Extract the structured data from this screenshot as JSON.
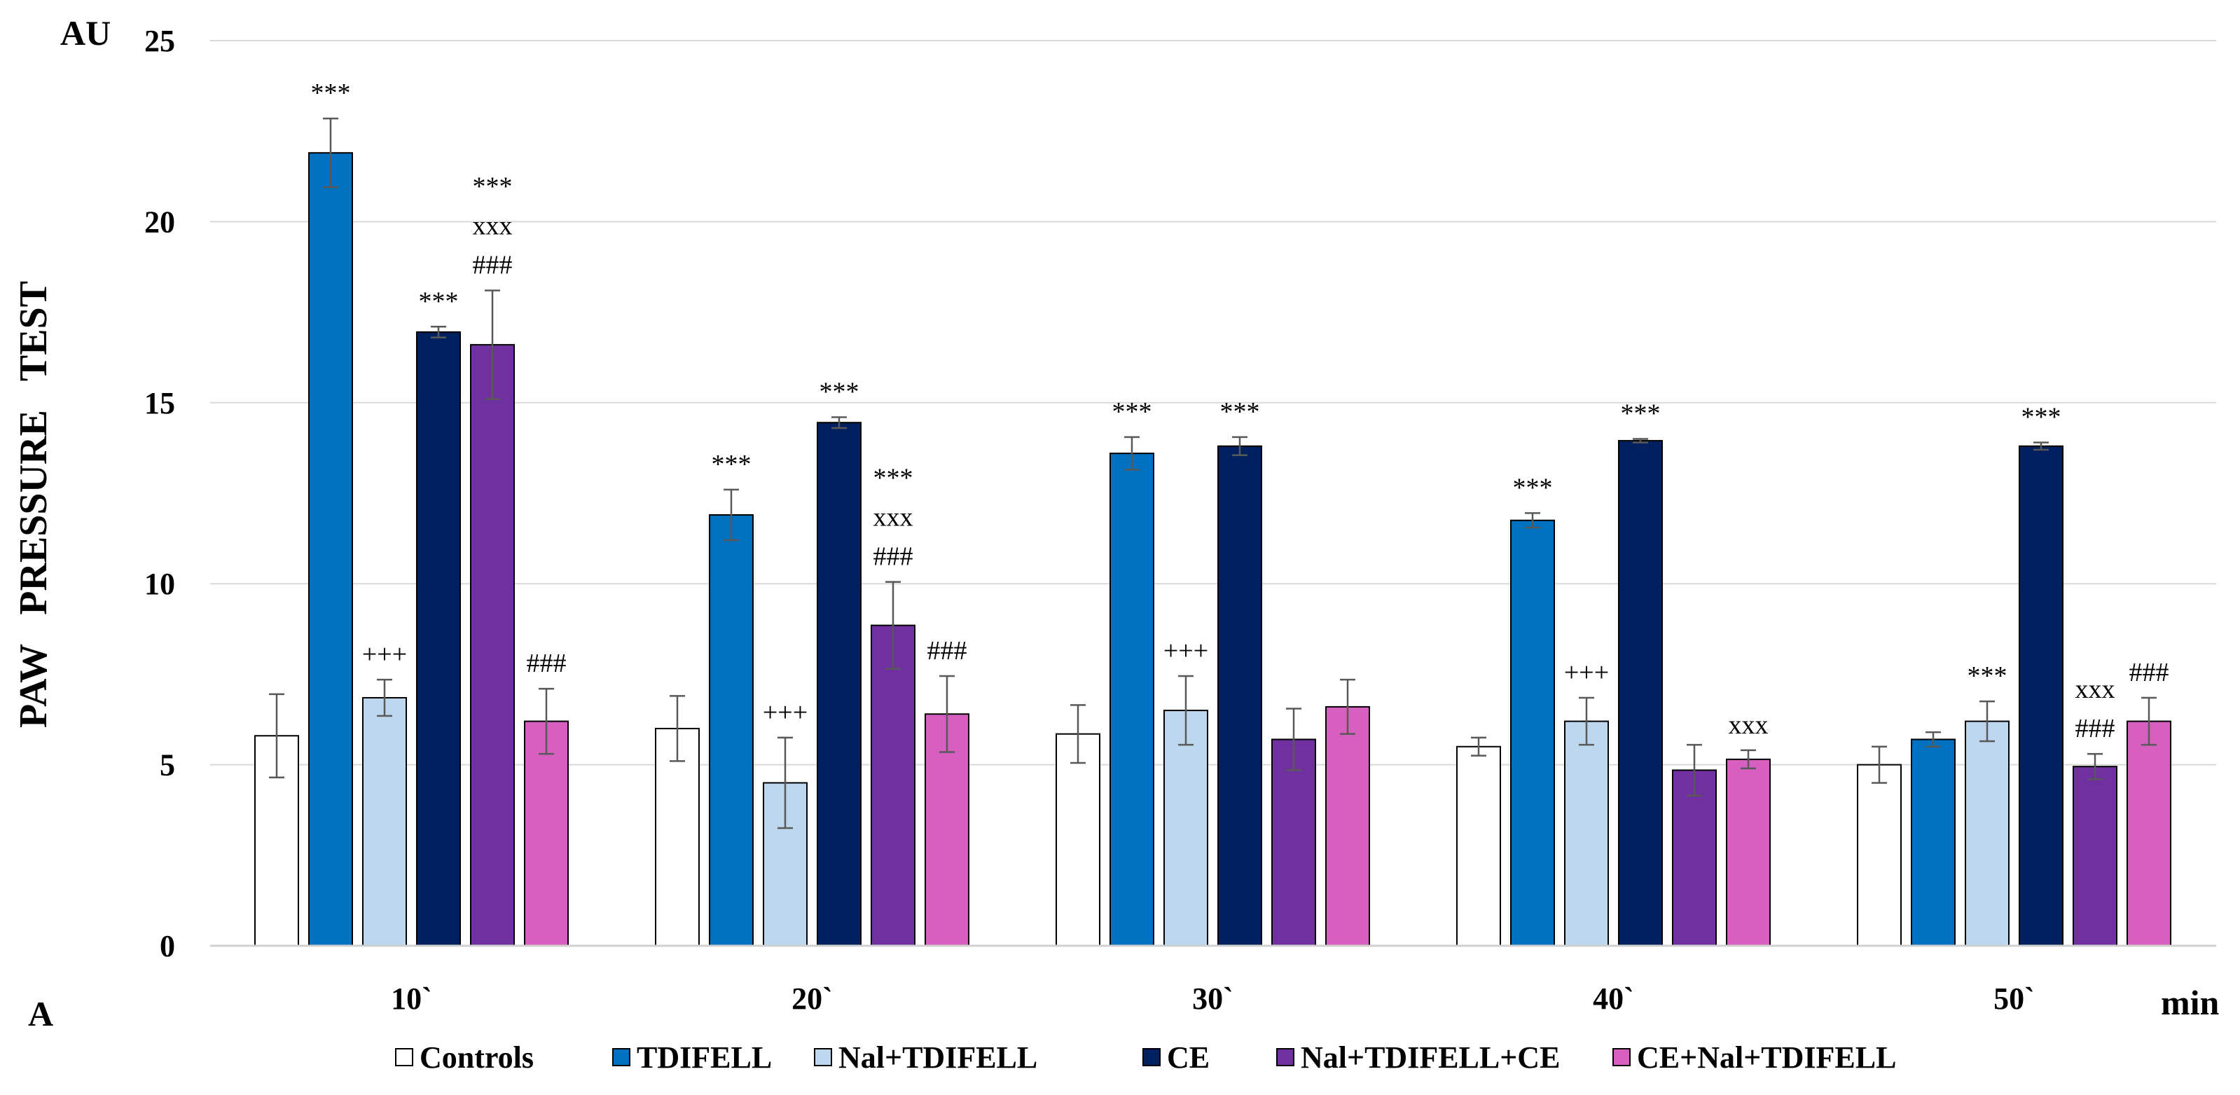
{
  "chart_data": {
    "type": "bar",
    "title": "",
    "ylabel": "PAW   PRESSURE   TEST",
    "yunit": "AU",
    "xunit": "min",
    "panel_label": "A",
    "ylim": [
      0,
      25
    ],
    "yticks": [
      0,
      5,
      10,
      15,
      20,
      25
    ],
    "grid": true,
    "legend_position": "bottom",
    "categories": [
      "10`",
      "20`",
      "30`",
      "40`",
      "50`"
    ],
    "series": [
      {
        "name": "Controls",
        "color": "#ffffff",
        "values": [
          5.8,
          6.0,
          5.85,
          5.5,
          5.0
        ],
        "errors": [
          1.15,
          0.9,
          0.8,
          0.25,
          0.5
        ]
      },
      {
        "name": "TDIFELL",
        "color": "#0070c0",
        "values": [
          21.9,
          11.9,
          13.6,
          11.75,
          5.7
        ],
        "errors": [
          0.95,
          0.7,
          0.45,
          0.2,
          0.2
        ]
      },
      {
        "name": "Nal+TDIFELL",
        "color": "#bdd7ee",
        "values": [
          6.85,
          4.5,
          6.5,
          6.2,
          6.2
        ],
        "errors": [
          0.5,
          1.25,
          0.95,
          0.65,
          0.55
        ]
      },
      {
        "name": "CE",
        "color": "#002060",
        "values": [
          16.95,
          14.45,
          13.8,
          13.95,
          13.8
        ],
        "errors": [
          0.15,
          0.15,
          0.25,
          0.05,
          0.1
        ]
      },
      {
        "name": "Nal+TDIFELL+CE",
        "color": "#7030a0",
        "values": [
          16.6,
          8.85,
          5.7,
          4.85,
          4.95
        ],
        "errors": [
          1.5,
          1.2,
          0.85,
          0.7,
          0.35
        ]
      },
      {
        "name": "CE+Nal+TDIFELL",
        "color": "#d65fc0",
        "values": [
          6.2,
          6.4,
          6.6,
          5.15,
          6.2
        ],
        "errors": [
          0.9,
          1.05,
          0.75,
          0.25,
          0.65
        ]
      }
    ],
    "annotations": [
      {
        "category": 0,
        "series": 1,
        "lines": [
          "***"
        ]
      },
      {
        "category": 0,
        "series": 2,
        "lines": [
          "+++"
        ]
      },
      {
        "category": 0,
        "series": 3,
        "lines": [
          "***"
        ]
      },
      {
        "category": 0,
        "series": 4,
        "lines": [
          "***",
          "xxx",
          "###"
        ]
      },
      {
        "category": 0,
        "series": 5,
        "lines": [
          "###"
        ]
      },
      {
        "category": 1,
        "series": 1,
        "lines": [
          "***"
        ]
      },
      {
        "category": 1,
        "series": 2,
        "lines": [
          "+++"
        ]
      },
      {
        "category": 1,
        "series": 3,
        "lines": [
          "***"
        ]
      },
      {
        "category": 1,
        "series": 4,
        "lines": [
          "***",
          "xxx",
          "###"
        ]
      },
      {
        "category": 1,
        "series": 5,
        "lines": [
          "###"
        ]
      },
      {
        "category": 2,
        "series": 1,
        "lines": [
          "***"
        ]
      },
      {
        "category": 2,
        "series": 2,
        "lines": [
          "+++"
        ]
      },
      {
        "category": 2,
        "series": 3,
        "lines": [
          "***"
        ]
      },
      {
        "category": 3,
        "series": 1,
        "lines": [
          "***"
        ]
      },
      {
        "category": 3,
        "series": 2,
        "lines": [
          "+++"
        ]
      },
      {
        "category": 3,
        "series": 3,
        "lines": [
          "***"
        ]
      },
      {
        "category": 3,
        "series": 5,
        "lines": [
          "xxx"
        ]
      },
      {
        "category": 4,
        "series": 2,
        "lines": [
          "***"
        ]
      },
      {
        "category": 4,
        "series": 3,
        "lines": [
          "***"
        ]
      },
      {
        "category": 4,
        "series": 4,
        "lines": [
          "xxx",
          "###"
        ]
      },
      {
        "category": 4,
        "series": 5,
        "lines": [
          "###"
        ]
      }
    ]
  }
}
